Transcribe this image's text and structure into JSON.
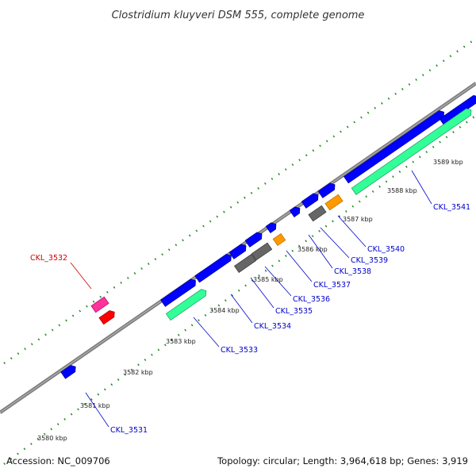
{
  "title": "Clostridium kluyveri DSM 555, complete genome",
  "footer": {
    "accession": "Accession: NC_009706",
    "summary": "Topology: circular; Length: 3,964,618 bp; Genes: 3,919"
  },
  "colors": {
    "backbone": "#808080",
    "tick": "#228b22",
    "cds": "#0000ff",
    "rrna_green": "#33ff99",
    "gray": "#666666",
    "orange": "#ff9900",
    "pink": "#ff3399",
    "red": "#ff0000",
    "label_blue": "#0000cc",
    "label_red": "#cc0000"
  },
  "ticks": [
    "3580 kbp",
    "3581 kbp",
    "3582 kbp",
    "3583 kbp",
    "3584 kbp",
    "3585 kbp",
    "3586 kbp",
    "3587 kbp",
    "3588 kbp",
    "3589 kbp"
  ],
  "genes": [
    {
      "label": "CKL_3531",
      "color": "label_blue"
    },
    {
      "label": "CKL_3532",
      "color": "label_red"
    },
    {
      "label": "CKL_3533",
      "color": "label_blue"
    },
    {
      "label": "CKL_3534",
      "color": "label_blue"
    },
    {
      "label": "CKL_3535",
      "color": "label_blue"
    },
    {
      "label": "CKL_3536",
      "color": "label_blue"
    },
    {
      "label": "CKL_3537",
      "color": "label_blue"
    },
    {
      "label": "CKL_3538",
      "color": "label_blue"
    },
    {
      "label": "CKL_3539",
      "color": "label_blue"
    },
    {
      "label": "CKL_3540",
      "color": "label_blue"
    },
    {
      "label": "CKL_3541",
      "color": "label_blue"
    }
  ]
}
